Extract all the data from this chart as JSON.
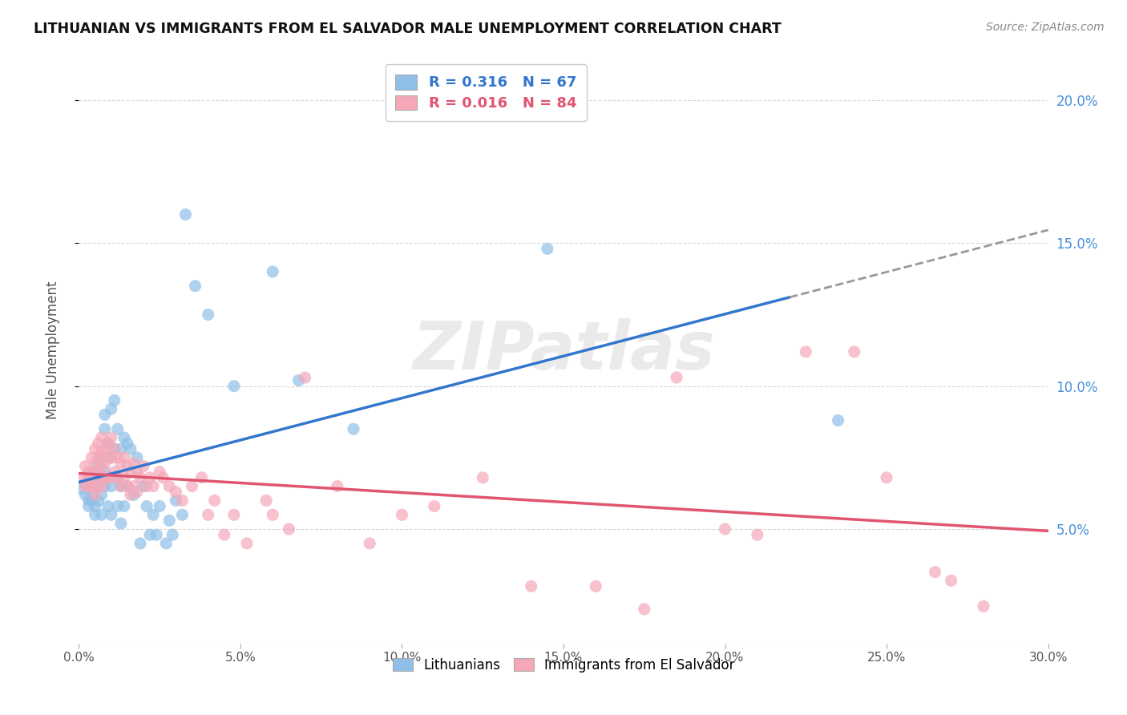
{
  "title": "LITHUANIAN VS IMMIGRANTS FROM EL SALVADOR MALE UNEMPLOYMENT CORRELATION CHART",
  "source": "Source: ZipAtlas.com",
  "ylabel": "Male Unemployment",
  "watermark": "ZIPatlas",
  "legend_r_blue": "R = 0.316",
  "legend_n_blue": "N = 67",
  "legend_r_pink": "R = 0.016",
  "legend_n_pink": "N = 84",
  "blue_color": "#90C0E8",
  "pink_color": "#F4A8B8",
  "blue_line_color": "#3377CC",
  "pink_line_color": "#E05570",
  "xlim": [
    0.0,
    0.3
  ],
  "ylim": [
    0.01,
    0.215
  ],
  "blue_scatter": [
    [
      0.001,
      0.064
    ],
    [
      0.002,
      0.066
    ],
    [
      0.002,
      0.062
    ],
    [
      0.003,
      0.06
    ],
    [
      0.003,
      0.058
    ],
    [
      0.003,
      0.065
    ],
    [
      0.004,
      0.063
    ],
    [
      0.004,
      0.068
    ],
    [
      0.004,
      0.06
    ],
    [
      0.005,
      0.067
    ],
    [
      0.005,
      0.07
    ],
    [
      0.005,
      0.058
    ],
    [
      0.005,
      0.055
    ],
    [
      0.006,
      0.072
    ],
    [
      0.006,
      0.065
    ],
    [
      0.006,
      0.06
    ],
    [
      0.007,
      0.068
    ],
    [
      0.007,
      0.075
    ],
    [
      0.007,
      0.062
    ],
    [
      0.007,
      0.055
    ],
    [
      0.008,
      0.09
    ],
    [
      0.008,
      0.085
    ],
    [
      0.008,
      0.07
    ],
    [
      0.008,
      0.065
    ],
    [
      0.009,
      0.08
    ],
    [
      0.009,
      0.068
    ],
    [
      0.009,
      0.058
    ],
    [
      0.01,
      0.092
    ],
    [
      0.01,
      0.075
    ],
    [
      0.01,
      0.065
    ],
    [
      0.01,
      0.055
    ],
    [
      0.011,
      0.095
    ],
    [
      0.011,
      0.078
    ],
    [
      0.012,
      0.085
    ],
    [
      0.012,
      0.068
    ],
    [
      0.012,
      0.058
    ],
    [
      0.013,
      0.078
    ],
    [
      0.013,
      0.065
    ],
    [
      0.013,
      0.052
    ],
    [
      0.014,
      0.082
    ],
    [
      0.014,
      0.058
    ],
    [
      0.015,
      0.08
    ],
    [
      0.015,
      0.065
    ],
    [
      0.016,
      0.078
    ],
    [
      0.017,
      0.062
    ],
    [
      0.018,
      0.075
    ],
    [
      0.019,
      0.045
    ],
    [
      0.02,
      0.065
    ],
    [
      0.021,
      0.058
    ],
    [
      0.022,
      0.048
    ],
    [
      0.023,
      0.055
    ],
    [
      0.024,
      0.048
    ],
    [
      0.025,
      0.058
    ],
    [
      0.027,
      0.045
    ],
    [
      0.028,
      0.053
    ],
    [
      0.029,
      0.048
    ],
    [
      0.03,
      0.06
    ],
    [
      0.032,
      0.055
    ],
    [
      0.033,
      0.16
    ],
    [
      0.036,
      0.135
    ],
    [
      0.04,
      0.125
    ],
    [
      0.048,
      0.1
    ],
    [
      0.06,
      0.14
    ],
    [
      0.068,
      0.102
    ],
    [
      0.085,
      0.085
    ],
    [
      0.145,
      0.148
    ],
    [
      0.235,
      0.088
    ]
  ],
  "pink_scatter": [
    [
      0.001,
      0.068
    ],
    [
      0.002,
      0.072
    ],
    [
      0.002,
      0.065
    ],
    [
      0.003,
      0.07
    ],
    [
      0.003,
      0.068
    ],
    [
      0.003,
      0.065
    ],
    [
      0.004,
      0.075
    ],
    [
      0.004,
      0.07
    ],
    [
      0.004,
      0.065
    ],
    [
      0.005,
      0.078
    ],
    [
      0.005,
      0.073
    ],
    [
      0.005,
      0.068
    ],
    [
      0.005,
      0.062
    ],
    [
      0.006,
      0.08
    ],
    [
      0.006,
      0.075
    ],
    [
      0.006,
      0.07
    ],
    [
      0.006,
      0.065
    ],
    [
      0.007,
      0.082
    ],
    [
      0.007,
      0.077
    ],
    [
      0.007,
      0.072
    ],
    [
      0.007,
      0.065
    ],
    [
      0.008,
      0.078
    ],
    [
      0.008,
      0.073
    ],
    [
      0.008,
      0.068
    ],
    [
      0.009,
      0.08
    ],
    [
      0.009,
      0.075
    ],
    [
      0.009,
      0.068
    ],
    [
      0.01,
      0.082
    ],
    [
      0.01,
      0.075
    ],
    [
      0.01,
      0.068
    ],
    [
      0.011,
      0.078
    ],
    [
      0.011,
      0.07
    ],
    [
      0.012,
      0.075
    ],
    [
      0.012,
      0.068
    ],
    [
      0.013,
      0.073
    ],
    [
      0.013,
      0.065
    ],
    [
      0.014,
      0.075
    ],
    [
      0.014,
      0.068
    ],
    [
      0.015,
      0.072
    ],
    [
      0.015,
      0.065
    ],
    [
      0.016,
      0.07
    ],
    [
      0.016,
      0.062
    ],
    [
      0.017,
      0.073
    ],
    [
      0.017,
      0.065
    ],
    [
      0.018,
      0.07
    ],
    [
      0.018,
      0.063
    ],
    [
      0.019,
      0.068
    ],
    [
      0.02,
      0.072
    ],
    [
      0.021,
      0.065
    ],
    [
      0.022,
      0.068
    ],
    [
      0.023,
      0.065
    ],
    [
      0.025,
      0.07
    ],
    [
      0.026,
      0.068
    ],
    [
      0.028,
      0.065
    ],
    [
      0.03,
      0.063
    ],
    [
      0.032,
      0.06
    ],
    [
      0.035,
      0.065
    ],
    [
      0.038,
      0.068
    ],
    [
      0.04,
      0.055
    ],
    [
      0.042,
      0.06
    ],
    [
      0.045,
      0.048
    ],
    [
      0.048,
      0.055
    ],
    [
      0.052,
      0.045
    ],
    [
      0.058,
      0.06
    ],
    [
      0.06,
      0.055
    ],
    [
      0.065,
      0.05
    ],
    [
      0.07,
      0.103
    ],
    [
      0.08,
      0.065
    ],
    [
      0.09,
      0.045
    ],
    [
      0.1,
      0.055
    ],
    [
      0.11,
      0.058
    ],
    [
      0.125,
      0.068
    ],
    [
      0.14,
      0.03
    ],
    [
      0.16,
      0.03
    ],
    [
      0.175,
      0.022
    ],
    [
      0.185,
      0.103
    ],
    [
      0.2,
      0.05
    ],
    [
      0.21,
      0.048
    ],
    [
      0.225,
      0.112
    ],
    [
      0.24,
      0.112
    ],
    [
      0.25,
      0.068
    ],
    [
      0.265,
      0.035
    ],
    [
      0.27,
      0.032
    ],
    [
      0.28,
      0.023
    ]
  ]
}
